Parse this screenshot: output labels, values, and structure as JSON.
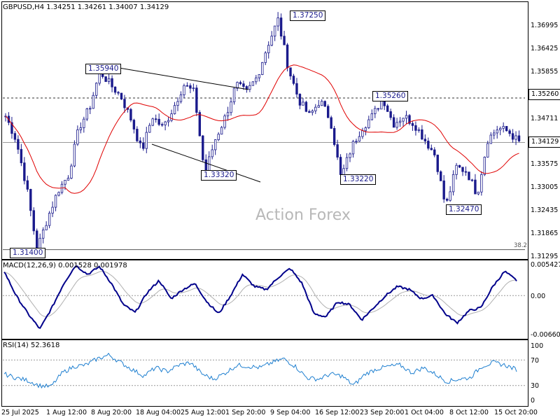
{
  "chart_data": [
    {
      "type": "candlestick",
      "title": "GBPUSD,H4  1.34251 1.34261 1.34007 1.34129",
      "symbol": "GBPUSD",
      "timeframe": "H4",
      "ohlc_last": {
        "open": 1.34251,
        "high": 1.34261,
        "low": 1.34007,
        "close": 1.34129
      },
      "ylim": [
        1.3118,
        1.377
      ],
      "y_ticks": [
        "1.36995",
        "1.36425",
        "1.35855",
        "1.35260",
        "1.34711",
        "1.34129",
        "1.33575",
        "1.33005",
        "1.32435",
        "1.31865",
        "1.31295"
      ],
      "current_price_label": "1.34129",
      "marked_levels": [
        {
          "label": "1.35940",
          "value": 1.3594
        },
        {
          "label": "1.37250",
          "value": 1.3725
        },
        {
          "label": "1.35260",
          "value": 1.3526
        },
        {
          "label": "1.33320",
          "value": 1.3332
        },
        {
          "label": "1.33220",
          "value": 1.3322
        },
        {
          "label": "1.32470",
          "value": 1.3247
        },
        {
          "label": "1.31400",
          "value": 1.314
        }
      ],
      "fib_label": "38.2",
      "watermark": "Action Forex",
      "moving_average_color": "#e00000",
      "candle_color": "#1a1a8c",
      "price_path_pivots": [
        [
          "25 Jul 2025",
          1.348
        ],
        [
          "28 Jul",
          1.342
        ],
        [
          "30 Jul",
          1.33
        ],
        [
          "1 Aug 00:00",
          1.314
        ],
        [
          "1 Aug 12:00",
          1.322
        ],
        [
          "4 Aug",
          1.329
        ],
        [
          "6 Aug",
          1.333
        ],
        [
          "7 Aug",
          1.345
        ],
        [
          "8 Aug",
          1.35
        ],
        [
          "8 Aug 20:00",
          1.3594
        ],
        [
          "11 Aug",
          1.356
        ],
        [
          "13 Aug",
          1.353
        ],
        [
          "15 Aug",
          1.347
        ],
        [
          "18 Aug 04:00",
          1.339
        ],
        [
          "19 Aug",
          1.348
        ],
        [
          "21 Aug",
          1.345
        ],
        [
          "25 Aug 12:00",
          1.35
        ],
        [
          "28 Aug",
          1.356
        ],
        [
          "29 Aug",
          1.354
        ],
        [
          "1 Sep 00:00",
          1.3332
        ],
        [
          "1 Sep 20:00",
          1.342
        ],
        [
          "3 Sep",
          1.348
        ],
        [
          "5 Sep",
          1.356
        ],
        [
          "9 Sep 04:00",
          1.354
        ],
        [
          "11 Sep",
          1.358
        ],
        [
          "15 Sep",
          1.366
        ],
        [
          "16 Sep 12:00",
          1.3725
        ],
        [
          "17 Sep",
          1.36
        ],
        [
          "18 Sep",
          1.352
        ],
        [
          "19 Sep",
          1.348
        ],
        [
          "22 Sep",
          1.352
        ],
        [
          "23 Sep",
          1.347
        ],
        [
          "24 Sep",
          1.3322
        ],
        [
          "25 Sep",
          1.34
        ],
        [
          "26 Sep",
          1.345
        ],
        [
          "29 Sep",
          1.348
        ],
        [
          "30 Sep",
          1.3526
        ],
        [
          "1 Oct 04:00",
          1.346
        ],
        [
          "2 Oct",
          1.348
        ],
        [
          "3 Oct",
          1.346
        ],
        [
          "6 Oct",
          1.342
        ],
        [
          "8 Oct",
          1.338
        ],
        [
          "9 Oct",
          1.3247
        ],
        [
          "10 Oct",
          1.335
        ],
        [
          "13 Oct",
          1.334
        ],
        [
          "14 Oct",
          1.328
        ],
        [
          "15 Oct",
          1.342
        ],
        [
          "15 Oct 20:00",
          1.345
        ],
        [
          "16 Oct",
          1.344
        ],
        [
          "17 Oct",
          1.3413
        ]
      ]
    },
    {
      "type": "line",
      "title": "MACD(12,26,9) 0.001528 0.001978",
      "indicator": "MACD",
      "params": [
        12,
        26,
        9
      ],
      "values_shown": [
        0.001528,
        0.001978
      ],
      "y_ticks": [
        "0.005427",
        "0.00",
        "-0.006603"
      ],
      "ylim": [
        -0.0069,
        0.0057
      ],
      "series_colors": {
        "macd": "#00008b",
        "signal": "#b0b0b0"
      },
      "macd_pivots": [
        0.004,
        0.0,
        -0.003,
        -0.0055,
        -0.002,
        0.002,
        0.005,
        0.0035,
        0.0048,
        0.002,
        -0.0015,
        -0.0028,
        0.0005,
        0.0025,
        -0.0005,
        0.001,
        0.002,
        -0.001,
        -0.003,
        0.0,
        0.0035,
        0.0015,
        0.001,
        0.003,
        0.0045,
        0.002,
        -0.003,
        -0.0035,
        -0.001,
        -0.0015,
        -0.004,
        -0.002,
        0.0,
        0.0015,
        0.001,
        -0.0005,
        0.0,
        -0.003,
        -0.0045,
        -0.0025,
        -0.002,
        0.0015,
        0.004,
        0.0025
      ]
    },
    {
      "type": "line",
      "title": "RSI(14) 52.3618",
      "indicator": "RSI",
      "period": 14,
      "value_shown": 52.3618,
      "y_ticks": [
        "100",
        "70",
        "30",
        "0"
      ],
      "ylim": [
        0,
        100
      ],
      "levels": [
        70,
        30
      ],
      "series_color": "#1e7fd0",
      "rsi_pivots": [
        48,
        42,
        38,
        30,
        28,
        50,
        60,
        62,
        72,
        78,
        66,
        55,
        45,
        58,
        52,
        62,
        66,
        48,
        40,
        50,
        62,
        60,
        58,
        66,
        72,
        60,
        42,
        40,
        48,
        45,
        30,
        48,
        56,
        60,
        62,
        50,
        58,
        48,
        36,
        40,
        42,
        60,
        66,
        62,
        55
      ]
    }
  ],
  "x_axis_labels": [
    "25 Jul 2025",
    "1 Aug 12:00",
    "8 Aug 20:00",
    "18 Aug 04:00",
    "25 Aug 12:00",
    "1 Sep 20:00",
    "9 Sep 04:00",
    "16 Sep 12:00",
    "23 Sep 20:00",
    "1 Oct 04:00",
    "8 Oct 12:00",
    "15 Oct 20:00"
  ]
}
